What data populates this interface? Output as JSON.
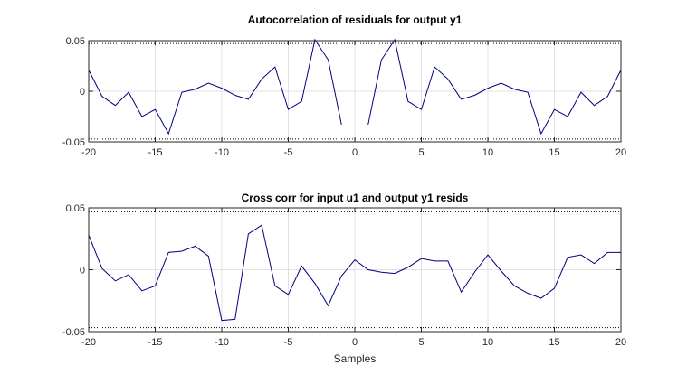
{
  "chart_data": [
    {
      "type": "line",
      "title": "Autocorrelation of residuals for output y1",
      "xlabel": "",
      "ylabel": "",
      "xlim": [
        -20,
        20
      ],
      "ylim": [
        -0.05,
        0.05
      ],
      "x_ticks": [
        -20,
        -15,
        -10,
        -5,
        0,
        5,
        10,
        15,
        20
      ],
      "y_ticks": [
        0.05,
        0,
        -0.05
      ],
      "y_tick_labels": [
        "0.05",
        "0",
        "-0.05"
      ],
      "grid": true,
      "confidence_bounds": [
        0.0472,
        -0.0472
      ],
      "series": [
        {
          "color": "#00007f",
          "x": [
            -20,
            -19,
            -18,
            -17,
            -16,
            -15,
            -14,
            -13,
            -12,
            -11,
            -10,
            -9,
            -8,
            -7,
            -6,
            -5,
            -4,
            -3,
            -2,
            -1,
            null,
            1,
            2,
            3,
            4,
            5,
            6,
            7,
            8,
            9,
            10,
            11,
            12,
            13,
            14,
            15,
            16,
            17,
            18,
            19,
            20
          ],
          "y": [
            0.021,
            -0.005,
            -0.014,
            -0.001,
            -0.025,
            -0.018,
            -0.042,
            -0.001,
            0.002,
            0.008,
            0.003,
            -0.004,
            -0.008,
            0.012,
            0.024,
            -0.018,
            -0.01,
            0.051,
            0.031,
            -0.033,
            null,
            -0.033,
            0.031,
            0.051,
            -0.01,
            -0.018,
            0.024,
            0.012,
            -0.008,
            -0.004,
            0.003,
            0.008,
            0.002,
            -0.001,
            -0.042,
            -0.018,
            -0.025,
            -0.001,
            -0.014,
            -0.005,
            0.021
          ]
        }
      ]
    },
    {
      "type": "line",
      "title": "Cross corr for input u1 and output y1 resids",
      "xlabel": "Samples",
      "ylabel": "",
      "xlim": [
        -20,
        20
      ],
      "ylim": [
        -0.05,
        0.05
      ],
      "x_ticks": [
        -20,
        -15,
        -10,
        -5,
        0,
        5,
        10,
        15,
        20
      ],
      "y_ticks": [
        0.05,
        0,
        -0.05
      ],
      "y_tick_labels": [
        "0.05",
        "0",
        "-0.05"
      ],
      "grid": true,
      "confidence_bounds": [
        0.0468,
        -0.0468
      ],
      "series": [
        {
          "color": "#00007f",
          "x": [
            -20,
            -19,
            -18,
            -17,
            -16,
            -15,
            -14,
            -13,
            -12,
            -11,
            -10,
            -9,
            -8,
            -7,
            -6,
            -5,
            -4,
            -3,
            -2,
            -1,
            0,
            1,
            2,
            3,
            4,
            5,
            6,
            7,
            8,
            9,
            10,
            11,
            12,
            13,
            14,
            15,
            16,
            17,
            18,
            19,
            20
          ],
          "y": [
            0.028,
            0.001,
            -0.009,
            -0.004,
            -0.017,
            -0.013,
            0.014,
            0.015,
            0.019,
            0.011,
            -0.041,
            -0.04,
            0.029,
            0.036,
            -0.013,
            -0.02,
            0.003,
            -0.011,
            -0.029,
            -0.005,
            0.008,
            0.0,
            -0.002,
            -0.003,
            0.002,
            0.009,
            0.007,
            0.007,
            -0.018,
            -0.002,
            0.012,
            -0.001,
            -0.013,
            -0.019,
            -0.023,
            -0.015,
            0.01,
            0.012,
            0.005,
            0.014,
            0.014
          ]
        }
      ]
    }
  ]
}
